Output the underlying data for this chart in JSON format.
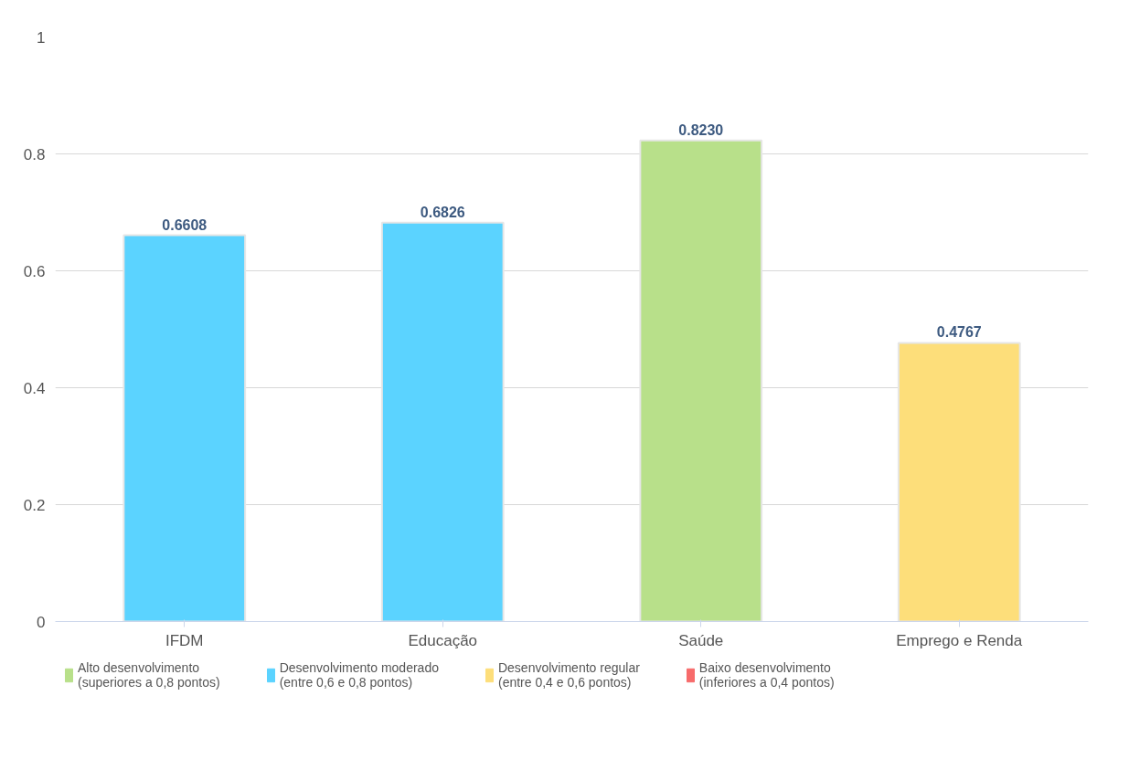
{
  "chart_data": {
    "type": "bar",
    "categories": [
      "IFDM",
      "Educação",
      "Saúde",
      "Emprego e Renda"
    ],
    "series": [
      {
        "name": "Alto desenvolvimento\n(superiores a 0,8 pontos)",
        "color": "#b8e08a",
        "values": [
          null,
          null,
          0.823,
          null
        ]
      },
      {
        "name": "Desenvolvimento moderado\n(entre 0,6 e 0,8 pontos)",
        "color": "#5bd3ff",
        "values": [
          0.6608,
          0.6826,
          null,
          null
        ]
      },
      {
        "name": "Desenvolvimento regular\n(entre 0,4 e 0,6 pontos)",
        "color": "#fdde7a",
        "values": [
          null,
          null,
          null,
          0.4767
        ]
      },
      {
        "name": "Baixo desenvolvimento\n(inferiores a 0,4 pontos)",
        "color": "#f76b6b",
        "values": [
          null,
          null,
          null,
          null
        ]
      }
    ],
    "value_labels": [
      "0.6608",
      "0.6826",
      "0.8230",
      "0.4767"
    ],
    "ylim": [
      0,
      1
    ],
    "yticks": [
      0,
      0.2,
      0.4,
      0.6,
      0.8,
      1
    ],
    "grid": "y",
    "legend": "bottom"
  }
}
